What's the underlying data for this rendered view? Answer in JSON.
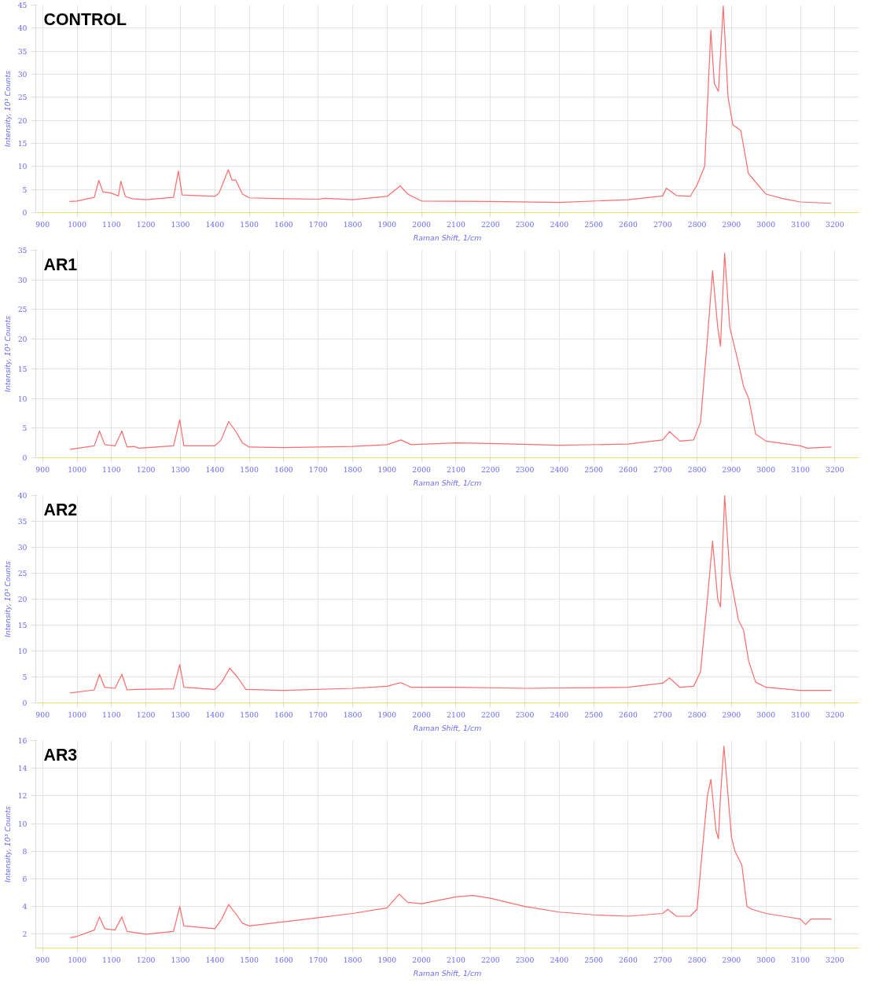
{
  "chart_data": [
    {
      "type": "line",
      "title": "CONTROL",
      "xlabel": "Raman Shift, 1/cm",
      "ylabel": "Intensity, 10³ Counts",
      "xlim": [
        880,
        3270
      ],
      "xticks": [
        900,
        1000,
        1100,
        1200,
        1300,
        1400,
        1500,
        1600,
        1700,
        1800,
        1900,
        2000,
        2100,
        2200,
        2300,
        2400,
        2500,
        2600,
        2700,
        2800,
        2900,
        3000,
        3100,
        3200
      ],
      "ylim": [
        0,
        45
      ],
      "yticks": [
        0,
        5,
        10,
        15,
        20,
        25,
        30,
        35,
        40,
        45
      ],
      "grid": true,
      "marker": "none",
      "line_style": "solid",
      "series": [
        {
          "color": "#ff6b6b",
          "x": [
            978,
            1000,
            1050,
            1063,
            1075,
            1100,
            1120,
            1127,
            1140,
            1160,
            1200,
            1280,
            1294,
            1305,
            1370,
            1400,
            1412,
            1439,
            1450,
            1460,
            1480,
            1500,
            1600,
            1700,
            1720,
            1800,
            1900,
            1938,
            1960,
            2000,
            2200,
            2400,
            2600,
            2700,
            2711,
            2740,
            2780,
            2800,
            2822,
            2840,
            2850,
            2862,
            2876,
            2890,
            2904,
            2927,
            2949,
            2960,
            3000,
            3050,
            3100,
            3190
          ],
          "values": [
            2.4,
            2.5,
            3.3,
            7.0,
            4.5,
            4.2,
            3.6,
            6.8,
            3.5,
            3.0,
            2.8,
            3.3,
            9.0,
            3.8,
            3.6,
            3.5,
            4.2,
            9.3,
            7.0,
            7.1,
            4.0,
            3.2,
            3.0,
            2.9,
            3.1,
            2.8,
            3.5,
            5.8,
            4.0,
            2.5,
            2.4,
            2.2,
            2.8,
            3.6,
            5.3,
            3.7,
            3.5,
            6.0,
            10.0,
            39.6,
            28.0,
            26.3,
            44.8,
            25.0,
            19.0,
            17.8,
            8.5,
            7.5,
            4.0,
            3.0,
            2.3,
            2.0
          ]
        }
      ]
    },
    {
      "type": "line",
      "title": "AR1",
      "xlabel": "Raman Shift, 1/cm",
      "ylabel": "Intensity, 10³ Counts",
      "xlim": [
        880,
        3270
      ],
      "xticks": [
        900,
        1000,
        1100,
        1200,
        1300,
        1400,
        1500,
        1600,
        1700,
        1800,
        1900,
        2000,
        2100,
        2200,
        2300,
        2400,
        2500,
        2600,
        2700,
        2800,
        2900,
        3000,
        3100,
        3200
      ],
      "ylim": [
        0,
        35
      ],
      "yticks": [
        0,
        5,
        10,
        15,
        20,
        25,
        30,
        35
      ],
      "grid": true,
      "marker": "none",
      "line_style": "solid",
      "series": [
        {
          "color": "#ff6b6b",
          "x": [
            980,
            1050,
            1065,
            1080,
            1110,
            1130,
            1145,
            1165,
            1180,
            1280,
            1298,
            1310,
            1400,
            1418,
            1440,
            1460,
            1480,
            1500,
            1600,
            1800,
            1900,
            1940,
            1970,
            2100,
            2200,
            2400,
            2600,
            2700,
            2720,
            2750,
            2790,
            2810,
            2830,
            2845,
            2860,
            2868,
            2880,
            2895,
            2920,
            2935,
            2950,
            2970,
            3000,
            3100,
            3120,
            3190
          ],
          "values": [
            1.4,
            2.0,
            4.5,
            2.2,
            2.0,
            4.5,
            1.8,
            1.9,
            1.6,
            2.0,
            6.4,
            2.0,
            2.0,
            3.0,
            6.1,
            4.5,
            2.5,
            1.8,
            1.7,
            1.9,
            2.2,
            3.0,
            2.2,
            2.5,
            2.4,
            2.1,
            2.3,
            3.0,
            4.4,
            2.8,
            3.0,
            6.0,
            20.0,
            31.5,
            22.0,
            18.8,
            34.5,
            22.0,
            16.0,
            12.0,
            10.0,
            4.0,
            2.8,
            2.0,
            1.6,
            1.8
          ]
        }
      ]
    },
    {
      "type": "line",
      "title": "AR2",
      "xlabel": "Raman Shift, 1/cm",
      "ylabel": "Intensity, 10³ Counts",
      "xlim": [
        880,
        3270
      ],
      "xticks": [
        900,
        1000,
        1100,
        1200,
        1300,
        1400,
        1500,
        1600,
        1700,
        1800,
        1900,
        2000,
        2100,
        2200,
        2300,
        2400,
        2500,
        2600,
        2700,
        2800,
        2900,
        3000,
        3100,
        3200
      ],
      "ylim": [
        0,
        40
      ],
      "yticks": [
        0,
        5,
        10,
        15,
        20,
        25,
        30,
        35,
        40
      ],
      "grid": true,
      "marker": "none",
      "line_style": "solid",
      "series": [
        {
          "color": "#ff6b6b",
          "x": [
            980,
            1050,
            1065,
            1080,
            1110,
            1130,
            1145,
            1170,
            1280,
            1298,
            1310,
            1400,
            1420,
            1443,
            1465,
            1490,
            1600,
            1800,
            1900,
            1940,
            1970,
            2100,
            2300,
            2600,
            2700,
            2720,
            2750,
            2790,
            2810,
            2830,
            2845,
            2860,
            2868,
            2880,
            2895,
            2920,
            2935,
            2950,
            2970,
            3000,
            3100,
            3190
          ],
          "values": [
            1.9,
            2.5,
            5.5,
            3.0,
            2.8,
            5.5,
            2.5,
            2.6,
            2.7,
            7.4,
            3.0,
            2.6,
            4.0,
            6.7,
            5.0,
            2.6,
            2.4,
            2.8,
            3.2,
            3.9,
            3.0,
            3.0,
            2.8,
            3.0,
            3.8,
            4.8,
            3.0,
            3.2,
            6.0,
            20.0,
            31.2,
            20.0,
            18.5,
            40.0,
            25.0,
            16.0,
            14.0,
            8.0,
            4.0,
            3.0,
            2.4,
            2.4
          ]
        }
      ]
    },
    {
      "type": "line",
      "title": "AR3",
      "xlabel": "Raman Shift, 1/cm",
      "ylabel": "Intensity, 10³ Counts",
      "xlim": [
        880,
        3270
      ],
      "xticks": [
        900,
        1000,
        1100,
        1200,
        1300,
        1400,
        1500,
        1600,
        1700,
        1800,
        1900,
        2000,
        2100,
        2200,
        2300,
        2400,
        2500,
        2600,
        2700,
        2800,
        2900,
        3000,
        3100,
        3200
      ],
      "ylim": [
        1,
        16
      ],
      "yticks": [
        2,
        4,
        6,
        8,
        10,
        12,
        14,
        16
      ],
      "grid": true,
      "marker": "none",
      "line_style": "solid",
      "series": [
        {
          "color": "#ff6b6b",
          "x": [
            980,
            1000,
            1050,
            1065,
            1080,
            1110,
            1130,
            1145,
            1200,
            1280,
            1298,
            1310,
            1400,
            1420,
            1440,
            1460,
            1480,
            1500,
            1600,
            1700,
            1800,
            1900,
            1935,
            1960,
            2000,
            2100,
            2150,
            2200,
            2300,
            2400,
            2500,
            2600,
            2700,
            2715,
            2740,
            2780,
            2800,
            2815,
            2830,
            2840,
            2855,
            2862,
            2868,
            2878,
            2890,
            2900,
            2910,
            2930,
            2945,
            2960,
            3000,
            3050,
            3100,
            3115,
            3130,
            3190
          ],
          "values": [
            1.75,
            1.85,
            2.3,
            3.25,
            2.4,
            2.3,
            3.25,
            2.2,
            2.0,
            2.2,
            4.0,
            2.6,
            2.4,
            3.1,
            4.15,
            3.5,
            2.8,
            2.6,
            2.9,
            3.2,
            3.5,
            3.9,
            4.9,
            4.3,
            4.2,
            4.7,
            4.8,
            4.6,
            4.0,
            3.6,
            3.4,
            3.3,
            3.5,
            3.8,
            3.3,
            3.3,
            3.8,
            8.0,
            12.0,
            13.2,
            9.5,
            8.9,
            12.0,
            15.6,
            12.0,
            9.0,
            8.0,
            7.0,
            4.0,
            3.8,
            3.5,
            3.3,
            3.1,
            2.7,
            3.1,
            3.1
          ]
        }
      ]
    }
  ]
}
